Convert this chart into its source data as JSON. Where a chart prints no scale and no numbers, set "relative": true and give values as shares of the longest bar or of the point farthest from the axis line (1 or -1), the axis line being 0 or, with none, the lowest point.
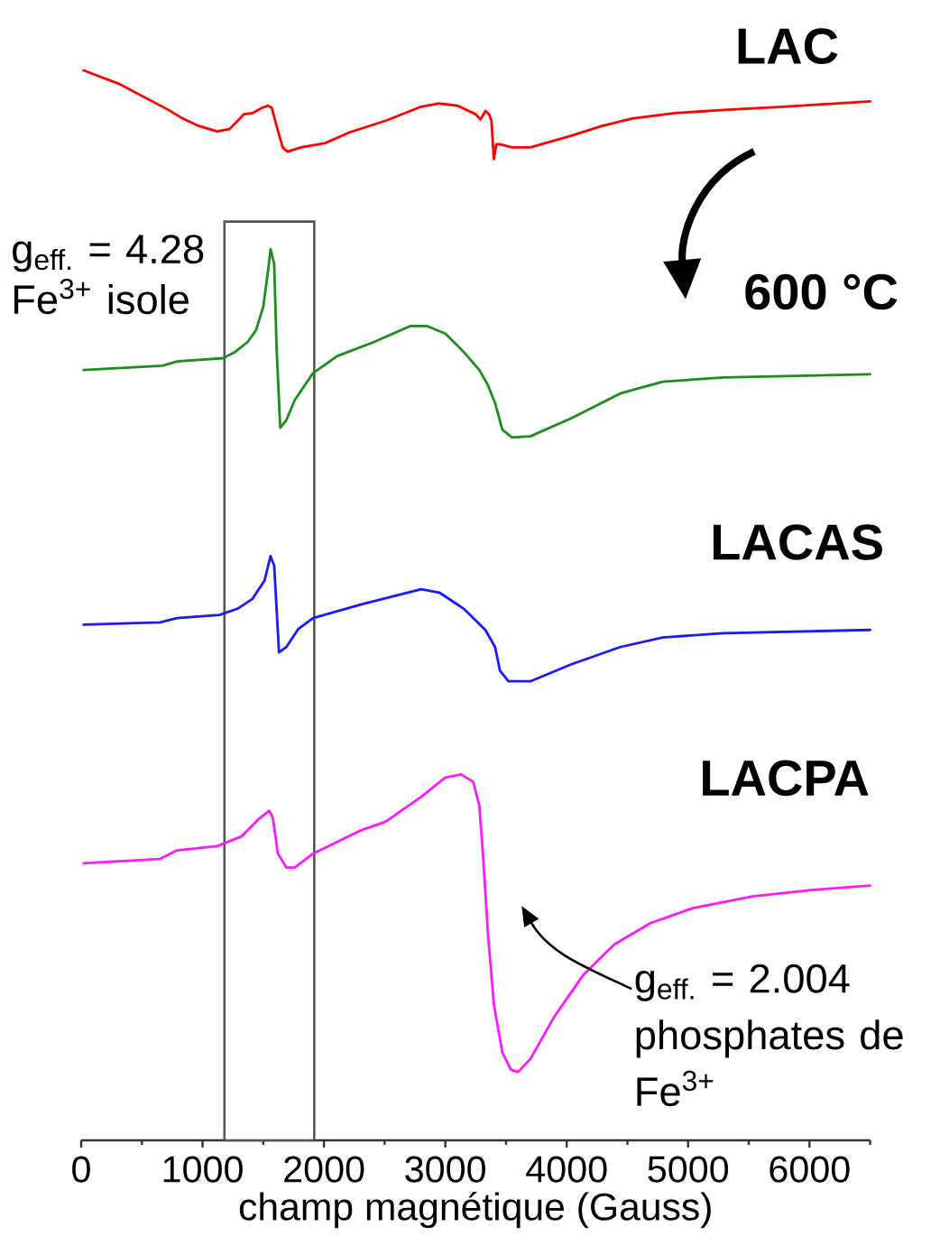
{
  "chart_data": {
    "type": "line",
    "relative": true,
    "xlabel": "champ magnétique (Gauss)",
    "xlim": [
      0,
      6500
    ],
    "xticks": [
      0,
      {
        "value": 500,
        "label": null
      },
      1000,
      {
        "value": 1500,
        "label": null
      },
      2000,
      {
        "value": 2500,
        "label": null
      },
      3000,
      {
        "value": 3500,
        "label": null
      },
      4000,
      {
        "value": 4500,
        "label": null
      },
      5000,
      {
        "value": 5500,
        "label": null
      },
      6000,
      {
        "value": 6500,
        "label": null
      }
    ],
    "marker": "none",
    "line_style": "solid",
    "series": [
      {
        "name": "LAC",
        "color": "#ff0000",
        "x": [
          20,
          320,
          720,
          820,
          970,
          1120,
          1220,
          1290,
          1340,
          1410,
          1490,
          1540,
          1570,
          1610,
          1660,
          1700,
          1810,
          2010,
          2210,
          2510,
          2800,
          2950,
          3100,
          3250,
          3290,
          3330,
          3360,
          3380,
          3400,
          3420,
          3450,
          3550,
          3700,
          4040,
          4290,
          4540,
          4890,
          5290,
          5780,
          6500
        ],
        "values": [
          1.0,
          0.987,
          0.963,
          0.956,
          0.948,
          0.943,
          0.945,
          0.953,
          0.959,
          0.96,
          0.965,
          0.967,
          0.965,
          0.948,
          0.928,
          0.924,
          0.928,
          0.932,
          0.942,
          0.953,
          0.966,
          0.969,
          0.967,
          0.959,
          0.954,
          0.962,
          0.959,
          0.953,
          0.917,
          0.931,
          0.931,
          0.928,
          0.928,
          0.939,
          0.948,
          0.955,
          0.96,
          0.963,
          0.966,
          0.971
        ]
      },
      {
        "name": "600 °C",
        "color": "#1e8c1e",
        "x": [
          20,
          670,
          790,
          1170,
          1270,
          1370,
          1440,
          1500,
          1540,
          1560,
          1590,
          1610,
          1640,
          1690,
          1760,
          1910,
          2110,
          2410,
          2710,
          2850,
          3000,
          3150,
          3280,
          3350,
          3410,
          3470,
          3550,
          3700,
          4040,
          4440,
          4790,
          5290,
          6500
        ],
        "values": [
          0.72,
          0.724,
          0.728,
          0.731,
          0.737,
          0.746,
          0.757,
          0.779,
          0.813,
          0.833,
          0.819,
          0.74,
          0.666,
          0.673,
          0.692,
          0.717,
          0.733,
          0.746,
          0.761,
          0.761,
          0.754,
          0.737,
          0.72,
          0.706,
          0.689,
          0.664,
          0.657,
          0.658,
          0.675,
          0.698,
          0.709,
          0.713,
          0.716
        ]
      },
      {
        "name": "LACAS",
        "color": "#1a1aff",
        "x": [
          20,
          650,
          790,
          1140,
          1290,
          1410,
          1510,
          1560,
          1590,
          1630,
          1690,
          1790,
          1910,
          2310,
          2800,
          2950,
          3150,
          3330,
          3410,
          3450,
          3520,
          3700,
          4040,
          4440,
          4790,
          5290,
          6500
        ],
        "values": [
          0.482,
          0.484,
          0.488,
          0.491,
          0.497,
          0.506,
          0.523,
          0.546,
          0.537,
          0.456,
          0.461,
          0.478,
          0.488,
          0.501,
          0.515,
          0.512,
          0.497,
          0.477,
          0.461,
          0.439,
          0.429,
          0.429,
          0.445,
          0.461,
          0.47,
          0.474,
          0.477
        ]
      },
      {
        "name": "LACPA",
        "color": "#ff1aff",
        "x": [
          20,
          650,
          790,
          1120,
          1320,
          1460,
          1550,
          1580,
          1620,
          1690,
          1760,
          1910,
          2310,
          2510,
          2800,
          3000,
          3130,
          3230,
          3280,
          3310,
          3350,
          3400,
          3470,
          3540,
          3600,
          3700,
          3900,
          4140,
          4390,
          4690,
          5040,
          5530,
          6030,
          6500
        ],
        "values": [
          0.259,
          0.263,
          0.271,
          0.275,
          0.284,
          0.3,
          0.308,
          0.301,
          0.268,
          0.255,
          0.255,
          0.268,
          0.29,
          0.298,
          0.321,
          0.339,
          0.342,
          0.335,
          0.313,
          0.268,
          0.195,
          0.127,
          0.082,
          0.066,
          0.064,
          0.076,
          0.116,
          0.155,
          0.183,
          0.203,
          0.217,
          0.228,
          0.234,
          0.238
        ]
      }
    ],
    "bands": [
      {
        "axis": "x",
        "from": 1180,
        "to": 1920,
        "label": "g$_{eff.}$ = 4.28 Fe$^{3+}$ isole",
        "color": "#555555"
      }
    ],
    "annotations": [
      "g$_{eff.}$ = 2.004 phosphates de Fe$^{3+}$"
    ]
  }
}
